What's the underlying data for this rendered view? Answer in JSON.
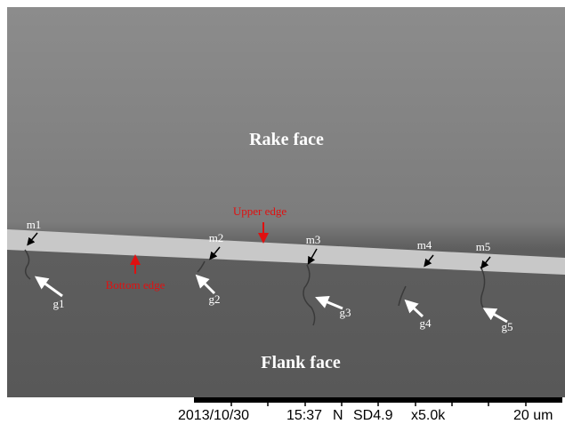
{
  "labels": {
    "rake": "Rake face",
    "flank": "Flank face",
    "upper": "Upper edge",
    "bottom": "Bottom edge"
  },
  "markers": [
    "m1",
    "m2",
    "m3",
    "m4",
    "m5"
  ],
  "grooves": [
    "g1",
    "g2",
    "g3",
    "g4",
    "g5"
  ],
  "footer": [
    "2013/10/30",
    "15:37",
    "N",
    "SD4.9",
    "x5.0k",
    "20 um"
  ]
}
